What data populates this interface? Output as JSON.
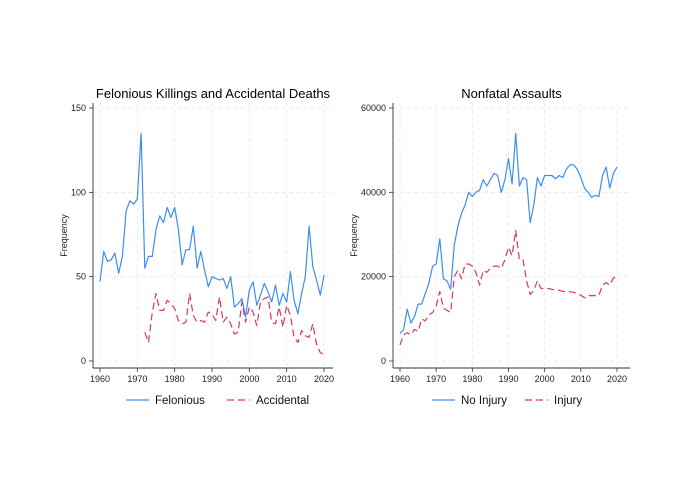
{
  "colors": {
    "series1": "#3c8ef2",
    "series2": "#d9366c",
    "grid": "#e6e6e6"
  },
  "chart_data": [
    {
      "type": "line",
      "title": "Felonious Killings and Accidental Deaths",
      "xlabel": "",
      "ylabel": "Frequency",
      "xlim": [
        1960,
        2020
      ],
      "ylim": [
        0,
        150
      ],
      "xticks": [
        1960,
        1970,
        1980,
        1990,
        2000,
        2010,
        2020
      ],
      "yticks": [
        0,
        50,
        100,
        150
      ],
      "grid": true,
      "legend": "bottom",
      "series": [
        {
          "name": "Felonious",
          "style": "solid",
          "start": 1960,
          "values": [
            47,
            65,
            59,
            60,
            64,
            52,
            62,
            89,
            95,
            93,
            96,
            135,
            55,
            62,
            62,
            78,
            86,
            82,
            91,
            85,
            91,
            78,
            57,
            66,
            66,
            80,
            55,
            65,
            54,
            44,
            50,
            49,
            48,
            49,
            43,
            50,
            32,
            34,
            37,
            26,
            42,
            47,
            33,
            39,
            46,
            41,
            35,
            45,
            33,
            40,
            35,
            53,
            36,
            28,
            40,
            50,
            80,
            56,
            48,
            39,
            51
          ]
        },
        {
          "name": "Accidental",
          "style": "dashed",
          "start": 1972,
          "values": [
            17,
            11,
            29,
            40,
            30,
            30,
            36,
            34,
            31,
            24,
            22,
            23,
            40,
            27,
            23,
            24,
            23,
            29,
            28,
            24,
            38,
            23,
            26,
            22,
            16,
            17,
            35,
            23,
            32,
            29,
            21,
            35,
            37,
            38,
            23,
            22,
            32,
            20,
            33,
            27,
            14,
            11,
            18,
            15,
            14,
            22,
            10,
            5,
            4
          ]
        }
      ]
    },
    {
      "type": "line",
      "title": "Nonfatal Assaults",
      "xlabel": "",
      "ylabel": "Frequency",
      "xlim": [
        1960,
        2020
      ],
      "ylim": [
        0,
        60000
      ],
      "xticks": [
        1960,
        1970,
        1980,
        1990,
        2000,
        2010,
        2020
      ],
      "yticks": [
        0,
        20000,
        40000,
        60000
      ],
      "grid": true,
      "legend": "bottom",
      "series": [
        {
          "name": "No Injury",
          "style": "solid",
          "start": 1960,
          "values": [
            6500,
            7500,
            12300,
            9000,
            10500,
            13500,
            13500,
            16000,
            18500,
            22500,
            23000,
            29000,
            19500,
            19000,
            17000,
            27500,
            32000,
            35000,
            37000,
            40000,
            39000,
            40000,
            40500,
            43000,
            41500,
            43000,
            44500,
            44000,
            40000,
            43000,
            48000,
            42000,
            54000,
            41500,
            43500,
            43000,
            32800,
            37000,
            43500,
            41500,
            44000,
            44000,
            44000,
            43200,
            44000,
            43500,
            45500,
            46500,
            46500,
            45500,
            43500,
            41000,
            40000,
            38800,
            39300,
            39000,
            44000,
            46000,
            41000,
            44500,
            46000
          ]
        },
        {
          "name": "Injury",
          "style": "dashed",
          "start": 1960,
          "values": [
            3800,
            6200,
            6700,
            6200,
            7500,
            7000,
            10000,
            9500,
            11000,
            11500,
            13000,
            16500,
            12500,
            12000,
            11500,
            20000,
            21500,
            19500,
            23000,
            23000,
            22500,
            21000,
            18000,
            21500,
            21000,
            22000,
            22500,
            22500,
            22000,
            24000,
            27000,
            25000,
            31000,
            24000,
            24000,
            19000,
            15800,
            16800,
            19000,
            17200,
            17200,
            17200,
            17000,
            16800,
            16800,
            16500,
            16500,
            16400,
            16300,
            16000,
            15600,
            15000,
            15500,
            15500,
            15500,
            15500,
            18000,
            18600,
            18000,
            19700,
            20000
          ]
        }
      ]
    }
  ]
}
